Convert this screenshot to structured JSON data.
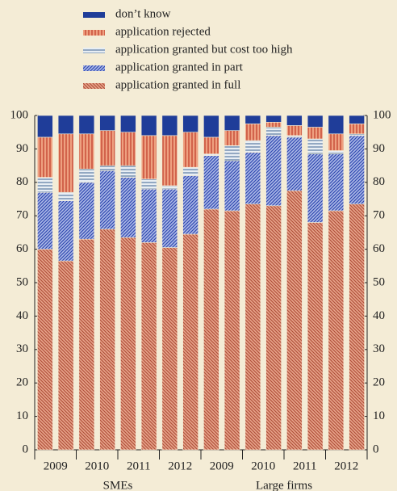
{
  "chart_data": {
    "type": "stacked_bar",
    "x_labels": [
      "2009",
      "2010",
      "2011",
      "2012",
      "2009",
      "2010",
      "2011",
      "2012"
    ],
    "groups": [
      "SMEs",
      "Large firms"
    ],
    "ylim": [
      0,
      100
    ],
    "yticks": [
      0,
      10,
      20,
      30,
      40,
      50,
      60,
      70,
      80,
      90,
      100
    ],
    "series": [
      {
        "name": "application granted in full",
        "color": "#e8a58c",
        "hatch_color": "#b0503a",
        "hatch": "diagonal-down",
        "values": [
          60,
          56.5,
          63,
          66,
          63.5,
          62,
          60.5,
          64.5,
          72,
          71.5,
          73.5,
          73,
          77.5,
          68,
          71.5,
          73.5
        ]
      },
      {
        "name": "application granted in part",
        "color": "#aebbe8",
        "hatch_color": "#3048b0",
        "hatch": "diagonal-up",
        "values": [
          17,
          18,
          17,
          17.5,
          18,
          16,
          17.5,
          17.5,
          16,
          15,
          15.5,
          21,
          16,
          20.5,
          17,
          20.5
        ]
      },
      {
        "name": "application granted but cost too high",
        "color": "#e8eef4",
        "hatch_color": "#5a7aa0",
        "hatch": "horizontal",
        "values": [
          4.5,
          2.5,
          4,
          1.5,
          3.5,
          3,
          1,
          2.5,
          0.5,
          4.5,
          3.5,
          2.5,
          0.5,
          4.5,
          1,
          0.5
        ]
      },
      {
        "name": "application rejected",
        "color": "#eea080",
        "hatch_color": "#c03a28",
        "hatch": "vertical",
        "values": [
          12,
          17.5,
          10.5,
          10.5,
          10,
          13,
          15,
          10.5,
          5,
          4.5,
          5,
          1.5,
          3,
          3.5,
          5,
          3
        ]
      },
      {
        "name": "don’t know",
        "color": "#1f3d99",
        "hatch_color": "#1f3d99",
        "hatch": "solid",
        "values": [
          6.5,
          5.5,
          5.5,
          4.5,
          5,
          6,
          6,
          5,
          6.5,
          4.5,
          2.5,
          2,
          3,
          3.5,
          5.5,
          2.5
        ]
      }
    ]
  }
}
